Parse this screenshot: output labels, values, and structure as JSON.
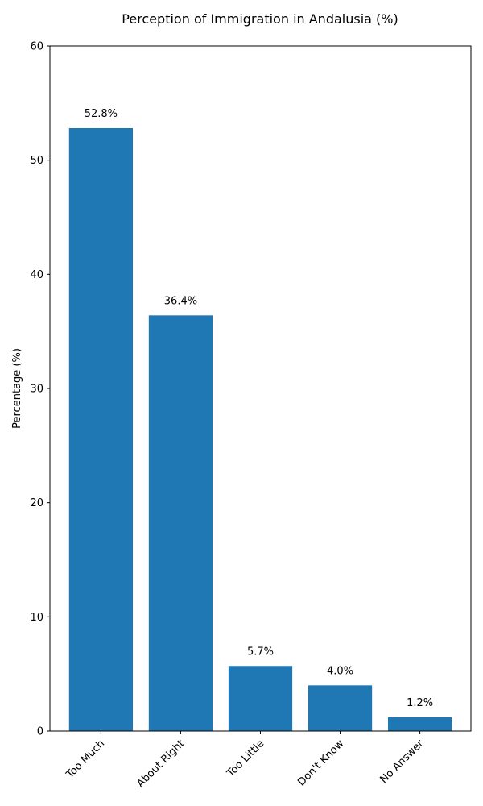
{
  "chart_data": {
    "type": "bar",
    "title": "Perception of Immigration in Andalusia (%)",
    "xlabel": "",
    "ylabel": "Percentage (%)",
    "categories": [
      "Too Much",
      "About Right",
      "Too Little",
      "Don't Know",
      "No Answer"
    ],
    "values": [
      52.8,
      36.4,
      5.7,
      4.0,
      1.2
    ],
    "value_labels": [
      "52.8%",
      "36.4%",
      "5.7%",
      "4.0%",
      "1.2%"
    ],
    "ylim": [
      0,
      60
    ],
    "yticks": [
      0,
      10,
      20,
      30,
      40,
      50,
      60
    ],
    "grid": false,
    "legend": "none",
    "x_tick_rotation_deg": 45,
    "bar_color": "#1f77b4"
  }
}
